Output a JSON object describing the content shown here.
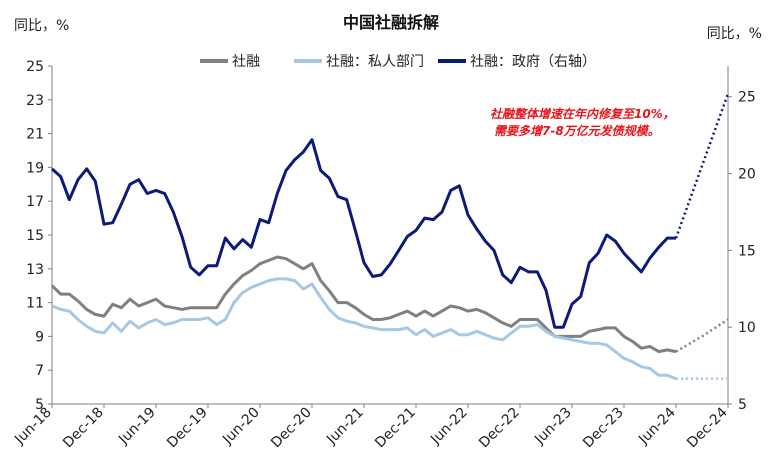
{
  "chart_data": {
    "type": "line",
    "title": "中国社融拆解",
    "left_unit": "同比，%",
    "right_unit": "同比，%",
    "annotation": [
      "社融整体增速在年内修复至10%，",
      "需要多增7-8万亿元发债规模。"
    ],
    "ylim_left": [
      5,
      25
    ],
    "ylim_right": [
      5,
      27
    ],
    "yticks_left": [
      5,
      7,
      9,
      11,
      13,
      15,
      17,
      19,
      21,
      23,
      25
    ],
    "yticks_right": [
      5,
      10,
      15,
      20,
      25
    ],
    "x_range": [
      0,
      78
    ],
    "x_tick_labels": [
      {
        "i": 0,
        "label": "Jun-18"
      },
      {
        "i": 6,
        "label": "Dec-18"
      },
      {
        "i": 12,
        "label": "Jun-19"
      },
      {
        "i": 18,
        "label": "Dec-19"
      },
      {
        "i": 24,
        "label": "Jun-20"
      },
      {
        "i": 30,
        "label": "Dec-20"
      },
      {
        "i": 36,
        "label": "Jun-21"
      },
      {
        "i": 42,
        "label": "Dec-21"
      },
      {
        "i": 48,
        "label": "Jun-22"
      },
      {
        "i": 54,
        "label": "Dec-22"
      },
      {
        "i": 60,
        "label": "Jun-23"
      },
      {
        "i": 66,
        "label": "Dec-23"
      },
      {
        "i": 72,
        "label": "Jun-24"
      },
      {
        "i": 78,
        "label": "Dec-24"
      }
    ],
    "series": [
      {
        "name": "社融",
        "axis": "left",
        "color": "#808080",
        "values": [
          12.0,
          11.5,
          11.5,
          11.1,
          10.6,
          10.3,
          10.2,
          10.9,
          10.7,
          11.2,
          10.8,
          11.0,
          11.2,
          10.8,
          10.7,
          10.6,
          10.7,
          10.7,
          10.7,
          10.7,
          11.5,
          12.1,
          12.6,
          12.9,
          13.3,
          13.5,
          13.7,
          13.6,
          13.3,
          13.0,
          13.3,
          12.3,
          11.7,
          11.0,
          11.0,
          10.7,
          10.3,
          10.0,
          10.0,
          10.1,
          10.3,
          10.5,
          10.2,
          10.5,
          10.2,
          10.5,
          10.8,
          10.7,
          10.5,
          10.6,
          10.4,
          10.1,
          9.8,
          9.6,
          10.0,
          10.0,
          10.0,
          9.5,
          9.0,
          9.0,
          9.0,
          9.0,
          9.3,
          9.4,
          9.5,
          9.5,
          9.0,
          8.7,
          8.3,
          8.4,
          8.1,
          8.2,
          8.1
        ],
        "forecast": {
          "from_index": 72,
          "values": [
            8.1,
            9.0,
            10.0
          ],
          "end_index": 78
        }
      },
      {
        "name": "社融：私人部门",
        "axis": "left",
        "color": "#a6c8e4",
        "values": [
          10.8,
          10.6,
          10.5,
          10.0,
          9.6,
          9.3,
          9.2,
          9.8,
          9.3,
          9.9,
          9.5,
          9.8,
          10.0,
          9.7,
          9.8,
          10.0,
          10.0,
          10.0,
          10.1,
          9.7,
          10.0,
          11.0,
          11.6,
          11.9,
          12.1,
          12.3,
          12.4,
          12.4,
          12.3,
          11.8,
          12.1,
          11.3,
          10.6,
          10.1,
          9.9,
          9.8,
          9.6,
          9.5,
          9.4,
          9.4,
          9.4,
          9.5,
          9.1,
          9.4,
          9.0,
          9.2,
          9.4,
          9.1,
          9.1,
          9.3,
          9.1,
          8.9,
          8.8,
          9.2,
          9.6,
          9.6,
          9.7,
          9.3,
          9.0,
          8.9,
          8.8,
          8.7,
          8.6,
          8.6,
          8.5,
          8.1,
          7.7,
          7.5,
          7.2,
          7.1,
          6.7,
          6.7,
          6.5
        ],
        "forecast": {
          "from_index": 72,
          "values": [
            6.5,
            6.5,
            6.5
          ],
          "end_index": 78
        }
      },
      {
        "name": "社融：政府（右轴）",
        "axis": "right",
        "color": "#0c1a78",
        "values": [
          20.3,
          19.8,
          18.3,
          19.6,
          20.3,
          19.5,
          16.7,
          16.8,
          18.0,
          19.3,
          19.6,
          18.7,
          18.9,
          18.7,
          17.5,
          15.9,
          13.9,
          13.4,
          14.0,
          14.0,
          15.8,
          15.1,
          15.7,
          15.2,
          17.0,
          16.8,
          18.7,
          20.2,
          20.9,
          21.4,
          22.2,
          20.2,
          19.7,
          18.5,
          18.3,
          16.3,
          14.2,
          13.3,
          13.4,
          14.1,
          15.0,
          15.9,
          16.3,
          17.1,
          17.0,
          17.5,
          18.9,
          19.2,
          17.3,
          16.4,
          15.6,
          15.0,
          13.4,
          12.9,
          13.9,
          13.6,
          13.6,
          12.4,
          10.0,
          10.0,
          11.5,
          12.0,
          14.2,
          14.8,
          16.0,
          15.6,
          14.8,
          14.2,
          13.6,
          14.5,
          15.2,
          15.8,
          15.8
        ],
        "forecast": {
          "from_index": 72,
          "values": [
            15.8,
            20.5,
            25.2
          ],
          "end_index": 78
        }
      }
    ]
  }
}
